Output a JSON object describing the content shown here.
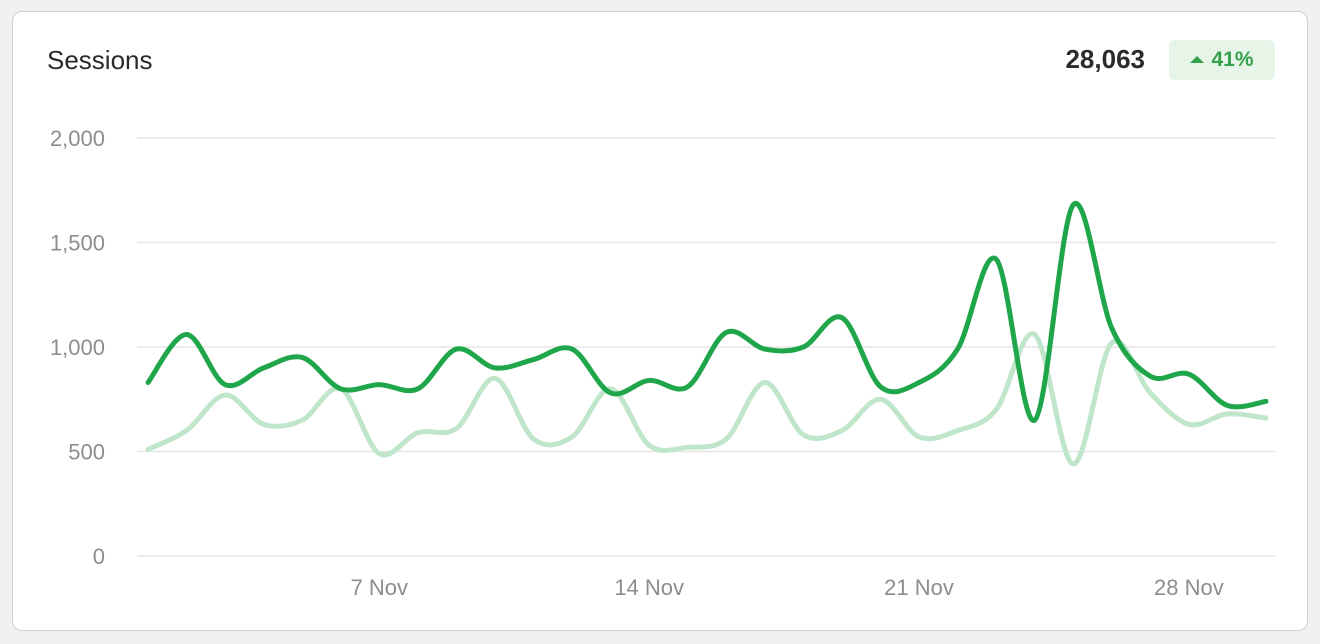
{
  "card": {
    "title": "Sessions",
    "total": "28,063",
    "change": "41%",
    "change_direction": "up",
    "change_color": "#34a04a"
  },
  "chart_data": {
    "type": "line",
    "title": "Sessions",
    "xlabel": "",
    "ylabel": "",
    "ylim": [
      0,
      2000
    ],
    "yticks": [
      0,
      500,
      1000,
      1500,
      2000
    ],
    "ytick_labels": [
      "0",
      "500",
      "1,000",
      "1,500",
      "2,000"
    ],
    "xticks": [
      6,
      13,
      20,
      27
    ],
    "xtick_labels": [
      "7 Nov",
      "14 Nov",
      "21 Nov",
      "28 Nov"
    ],
    "x": [
      0,
      1,
      2,
      3,
      4,
      5,
      6,
      7,
      8,
      9,
      10,
      11,
      12,
      13,
      14,
      15,
      16,
      17,
      18,
      19,
      20,
      21,
      22,
      23,
      24,
      25,
      26,
      27,
      28,
      29
    ],
    "grid": true,
    "series": [
      {
        "color": "#1fa64a",
        "values": [
          830,
          1060,
          820,
          900,
          950,
          800,
          820,
          800,
          990,
          900,
          940,
          990,
          780,
          840,
          810,
          1070,
          990,
          1000,
          1140,
          810,
          830,
          990,
          1420,
          650,
          1680,
          1090,
          860,
          870,
          720,
          740
        ]
      },
      {
        "color": "#bfe6ca",
        "values": [
          510,
          600,
          770,
          630,
          650,
          800,
          490,
          590,
          610,
          850,
          560,
          570,
          800,
          530,
          520,
          560,
          830,
          580,
          600,
          750,
          570,
          600,
          700,
          1060,
          440,
          1020,
          780,
          630,
          680,
          660
        ]
      }
    ]
  }
}
